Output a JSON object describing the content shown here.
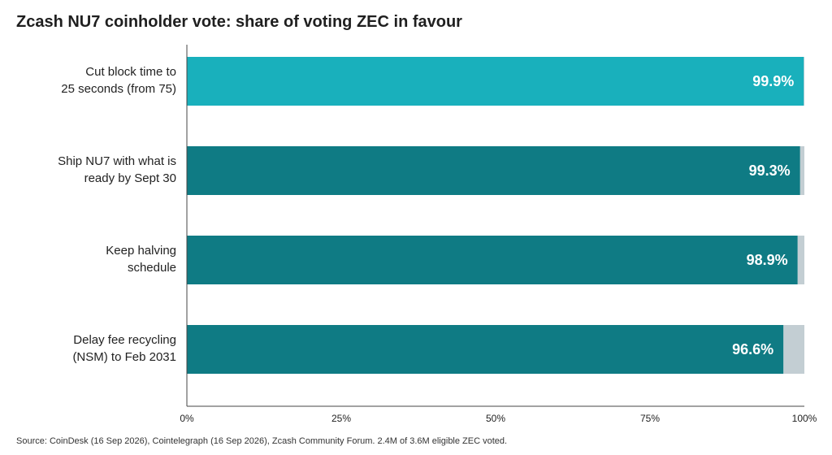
{
  "chart_data": {
    "type": "bar",
    "orientation": "horizontal",
    "stacked": true,
    "title": "Zcash NU7 coinholder vote: share of voting ZEC in favour",
    "categories": [
      [
        "Cut block time to",
        "25 seconds (from 75)"
      ],
      [
        "Ship NU7 with what is",
        "ready by Sept 30"
      ],
      [
        "Keep halving",
        "schedule"
      ],
      [
        "Delay fee recycling",
        "(NSM) to Feb 2031"
      ]
    ],
    "values": [
      99.9,
      99.3,
      98.9,
      96.6
    ],
    "value_labels": [
      "99.9%",
      "99.3%",
      "98.9%",
      "96.6%"
    ],
    "xlim": [
      0,
      100
    ],
    "xticks": [
      0,
      25,
      50,
      75,
      100
    ],
    "xtick_labels": [
      "0%",
      "25%",
      "50%",
      "75%",
      "100%"
    ],
    "grid": false,
    "colors": {
      "highlight": "#19b0bc",
      "favour": "#0f7b84",
      "remainder": "#c3ced3",
      "axis": "#444444"
    },
    "highlight_index": 0
  },
  "source": "Source: CoinDesk (16 Sep 2026), Cointelegraph (16 Sep 2026), Zcash Community Forum. 2.4M of 3.6M eligible ZEC voted."
}
